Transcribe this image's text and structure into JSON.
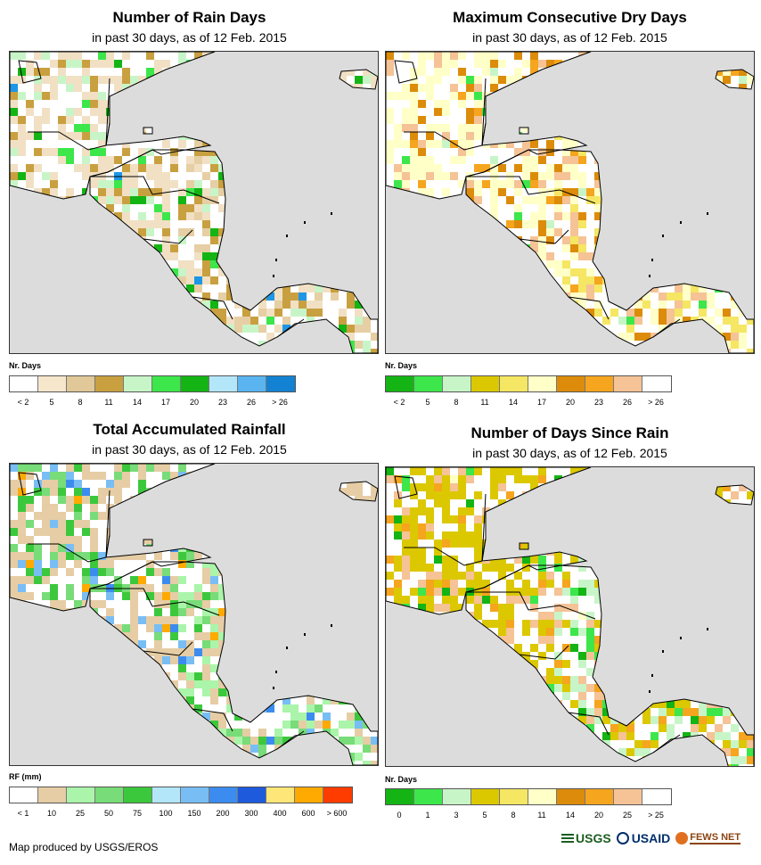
{
  "panels": [
    {
      "title": "Number of Rain Days",
      "subtitle": "in past 30 days, as of 12 Feb. 2015",
      "legend_title": "Nr. Days",
      "legend_colors": [
        "#ffffff",
        "#f5e6cc",
        "#e1c898",
        "#c9a040",
        "#c8f5c8",
        "#3ce64b",
        "#14b414",
        "#b4e6fa",
        "#5ab4f0",
        "#1482d2"
      ],
      "legend_labels": [
        "< 2",
        "5",
        "8",
        "11",
        "14",
        "17",
        "20",
        "23",
        "26",
        "> 26"
      ],
      "palette": [
        "#ffffff",
        "#f1e0c4",
        "#e6cfa4",
        "#c9a040",
        "#c8f5c8",
        "#3ce64b",
        "#14b414",
        "#1e96e6"
      ]
    },
    {
      "title": "Maximum Consecutive Dry Days",
      "subtitle": "in past 30 days, as of 12 Feb. 2015",
      "legend_title": "Nr. Days",
      "legend_colors": [
        "#14b414",
        "#3ce64b",
        "#c8f5c8",
        "#dcc800",
        "#f5e664",
        "#ffffc8",
        "#dc8c0a",
        "#f5a51e",
        "#f5c396",
        "#ffffff"
      ],
      "legend_labels": [
        "< 2",
        "5",
        "8",
        "11",
        "14",
        "17",
        "20",
        "23",
        "26",
        "> 26"
      ],
      "palette": [
        "#ffffff",
        "#ffffc8",
        "#f5e664",
        "#f5c396",
        "#dc8c0a",
        "#f5a51e",
        "#c8f5c8",
        "#3ce64b"
      ]
    },
    {
      "title": "Total Accumulated Rainfall",
      "subtitle": "in past 30 days, as of 12 Feb. 2015",
      "legend_title": "RF (mm)",
      "legend_colors": [
        "#ffffff",
        "#e6cda5",
        "#aaf5aa",
        "#78dc78",
        "#3cc83c",
        "#b4e6fa",
        "#78bef5",
        "#3c8cf0",
        "#1e5adc",
        "#ffe678",
        "#ffaa00",
        "#ff3c00"
      ],
      "legend_labels": [
        "< 1",
        "10",
        "25",
        "50",
        "75",
        "100",
        "150",
        "200",
        "300",
        "400",
        "600",
        "> 600"
      ],
      "palette": [
        "#ffffff",
        "#e6cda5",
        "#aaf5aa",
        "#78dc78",
        "#3cc83c",
        "#78bef5",
        "#3c8cf0",
        "#ffaa00"
      ]
    },
    {
      "title": "Number of Days Since Rain",
      "subtitle": "in past 30 days, as of 12 Feb. 2015",
      "legend_title": "Nr. Days",
      "legend_colors": [
        "#14b414",
        "#3ce64b",
        "#c8f5c8",
        "#dcc800",
        "#f5e664",
        "#ffffc8",
        "#dc8c0a",
        "#f5a51e",
        "#f5c396",
        "#ffffff"
      ],
      "legend_labels": [
        "0",
        "1",
        "3",
        "5",
        "8",
        "11",
        "14",
        "20",
        "25",
        "> 25"
      ],
      "palette": [
        "#ffffff",
        "#dcc800",
        "#c8f5c8",
        "#f5c396",
        "#f5a51e",
        "#3ce64b",
        "#14b414",
        "#ffffc8"
      ]
    }
  ],
  "footer": {
    "credit": "Map produced by USGS/EROS",
    "logos": [
      "USGS",
      "USAID",
      "FEWS NET"
    ]
  }
}
